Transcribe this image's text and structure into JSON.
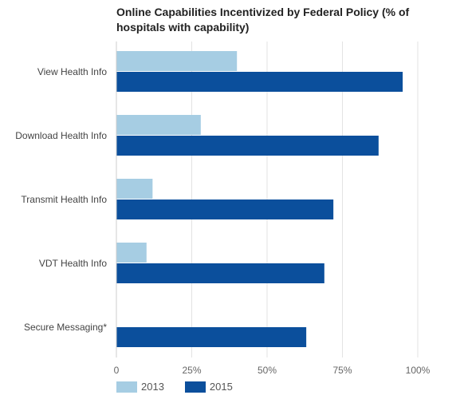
{
  "chart_data": {
    "type": "bar",
    "orientation": "horizontal",
    "title": "Online Capabilities Incentivized by Federal Policy (% of hospitals with capability)",
    "categories": [
      "View Health Info",
      "Download Health Info",
      "Transmit Health Info",
      "VDT Health Info",
      "Secure Messaging*"
    ],
    "series": [
      {
        "name": "2013",
        "color": "#a6cde3",
        "values": [
          40,
          28,
          12,
          10,
          null
        ]
      },
      {
        "name": "2015",
        "color": "#0b4f9c",
        "values": [
          95,
          87,
          72,
          69,
          63
        ]
      }
    ],
    "xlim": [
      0,
      100
    ],
    "xticks": [
      0,
      25,
      50,
      75,
      100
    ],
    "xtick_labels": [
      "0",
      "25%",
      "50%",
      "75%",
      "100%"
    ],
    "grid": true,
    "legend_position": "bottom-left"
  }
}
